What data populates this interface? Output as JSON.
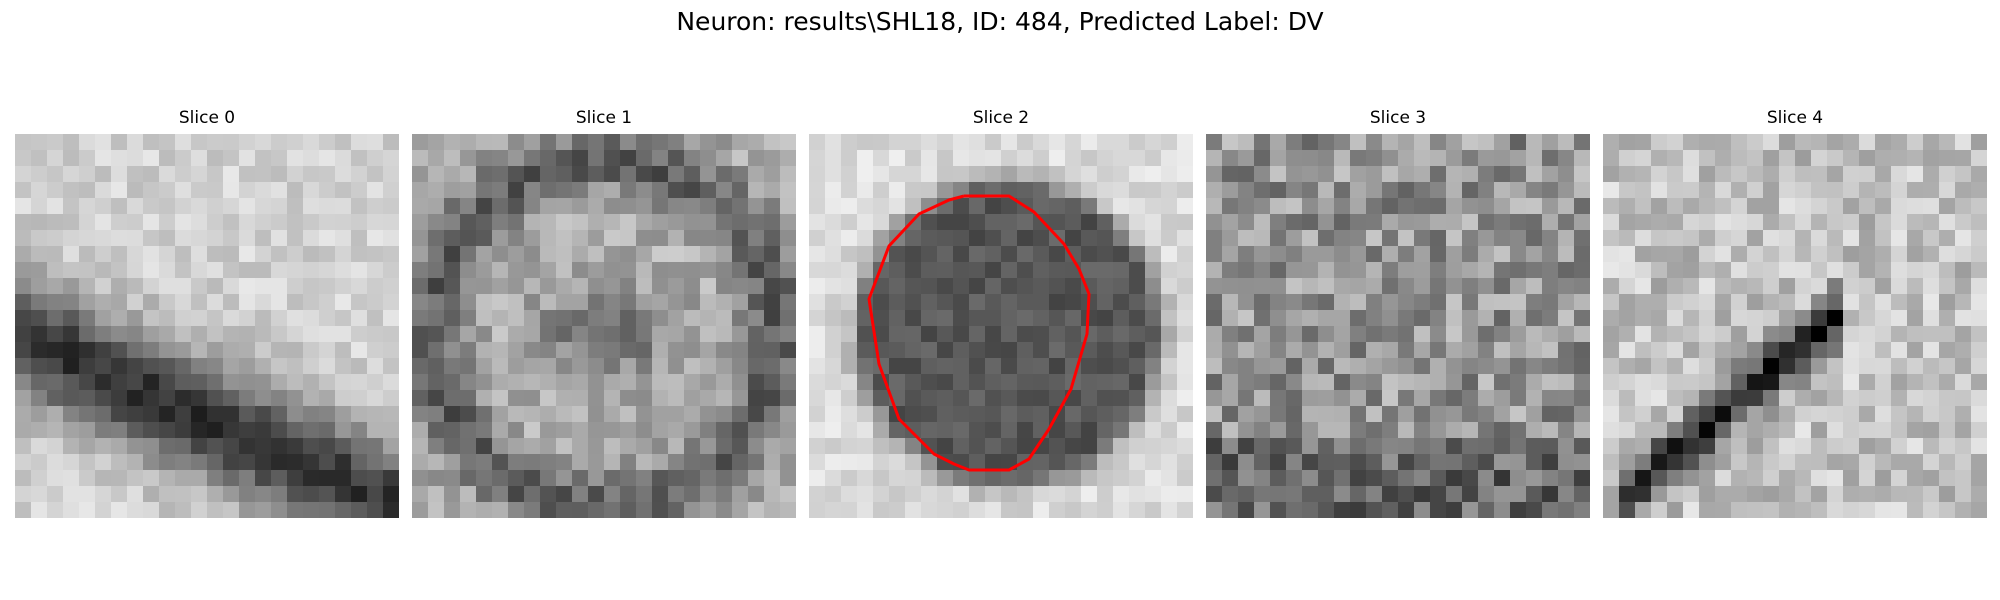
{
  "figure": {
    "title": "Neuron: results\\SHL18, ID: 484, Predicted Label: DV"
  },
  "panels": [
    {
      "title": "Slice 0",
      "texture": "dark-diagonal-band-bright-top-left-bottom-left",
      "seed": 11
    },
    {
      "title": "Slice 1",
      "texture": "mid-gray-blotchy-dark-center",
      "seed": 23
    },
    {
      "title": "Slice 2",
      "texture": "bright-surround-dark-round-cell",
      "seed": 37,
      "has_outline": true,
      "outline_color": "#ff0000"
    },
    {
      "title": "Slice 3",
      "texture": "mottled-gray-noisy",
      "seed": 41
    },
    {
      "title": "Slice 4",
      "texture": "light-noisy-dark-diagonal-streak-bottom-left",
      "seed": 53
    }
  ]
}
